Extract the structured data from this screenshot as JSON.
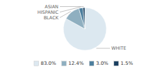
{
  "chart_data": {
    "type": "pie",
    "categories": [
      "WHITE",
      "BLACK",
      "HISPANIC",
      "ASIAN"
    ],
    "values": [
      83.0,
      12.4,
      3.0,
      1.5
    ],
    "value_labels": [
      "83.0%",
      "12.4%",
      "3.0%",
      "1.5%"
    ],
    "colors": [
      "#dce8f0",
      "#8fafc0",
      "#4d7f9e",
      "#1b4060"
    ],
    "legend": "bottom"
  }
}
